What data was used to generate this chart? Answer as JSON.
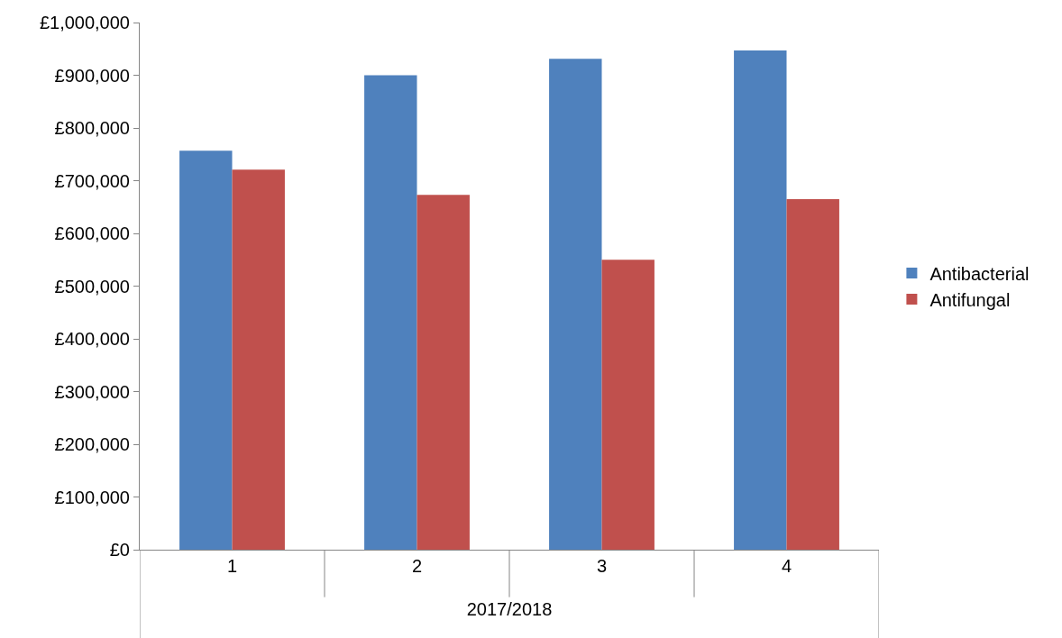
{
  "chart_data": {
    "type": "bar",
    "xlabel": "2017/2018",
    "categories": [
      "1",
      "2",
      "3",
      "4"
    ],
    "series": [
      {
        "name": "Antibacterial",
        "color": "#4f81bd",
        "values": [
          757000,
          900000,
          931000,
          947000
        ]
      },
      {
        "name": "Antifungal",
        "color": "#c0504d",
        "values": [
          721000,
          673000,
          550000,
          665000
        ]
      }
    ],
    "ylim": [
      0,
      1000000
    ],
    "yticks": [
      {
        "value": 0,
        "label": "£0"
      },
      {
        "value": 100000,
        "label": "£100,000"
      },
      {
        "value": 200000,
        "label": "£200,000"
      },
      {
        "value": 300000,
        "label": "£300,000"
      },
      {
        "value": 400000,
        "label": "£400,000"
      },
      {
        "value": 500000,
        "label": "£500,000"
      },
      {
        "value": 600000,
        "label": "£600,000"
      },
      {
        "value": 700000,
        "label": "£700,000"
      },
      {
        "value": 800000,
        "label": "£800,000"
      },
      {
        "value": 900000,
        "label": "£900,000"
      },
      {
        "value": 1000000,
        "label": "£1,000,000"
      }
    ],
    "grid": false,
    "legend": "right"
  }
}
